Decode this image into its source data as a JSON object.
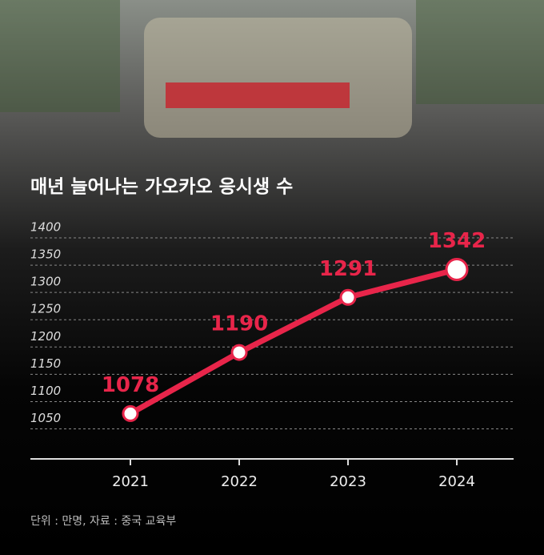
{
  "title": "매년 늘어나는 가오카오 응시생 수",
  "chart_data": {
    "type": "line",
    "categories": [
      "2021",
      "2022",
      "2023",
      "2024"
    ],
    "series": [
      {
        "name": null,
        "color": "#e8254a",
        "values": [
          1078,
          1190,
          1291,
          1342
        ]
      }
    ],
    "ylim": [
      995,
      1400
    ],
    "yticks": [
      1050,
      1100,
      1150,
      1200,
      1250,
      1300,
      1350,
      1400
    ],
    "grid": true
  },
  "footnote": "단위 : 만명, 자료 : 중국 교육부"
}
